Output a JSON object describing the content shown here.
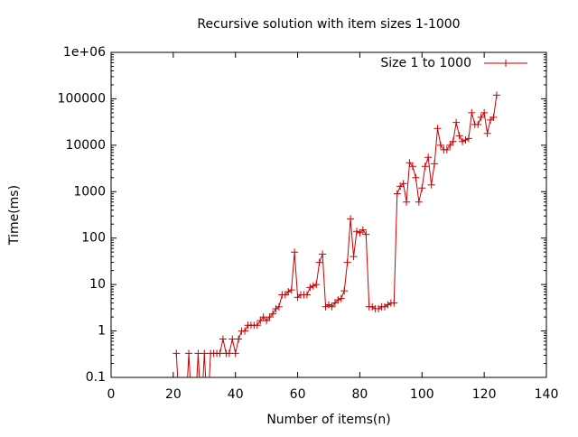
{
  "chart_data": {
    "type": "line",
    "title": "Recursive solution with item sizes 1-1000",
    "x_label": "Number of items(n)",
    "y_label": "Time(ms)",
    "log_y": true,
    "legend_position": "top-right",
    "xlim": [
      0,
      140
    ],
    "xticks": [
      0,
      20,
      40,
      60,
      80,
      100,
      120,
      140
    ],
    "ylim": [
      0.1,
      1000000
    ],
    "yticks": [
      0.1,
      1,
      10,
      100,
      1000,
      10000,
      100000,
      {
        "value": 1000000,
        "label": "1e+06"
      }
    ],
    "series": [
      {
        "name": "Size 1 to 1000",
        "color": "#cc0000",
        "x": [
          21,
          22,
          23,
          24,
          25,
          26,
          27,
          28,
          29,
          30,
          31,
          32,
          33,
          34,
          35,
          36,
          37,
          38,
          39,
          40,
          41,
          42,
          43,
          44,
          45,
          46,
          47,
          48,
          49,
          50,
          51,
          52,
          53,
          54,
          55,
          56,
          57,
          58,
          59,
          60,
          61,
          62,
          63,
          64,
          65,
          66,
          67,
          68,
          69,
          70,
          71,
          72,
          73,
          74,
          75,
          76,
          77,
          78,
          79,
          80,
          81,
          82,
          83,
          84,
          85,
          86,
          87,
          88,
          89,
          90,
          91,
          92,
          93,
          94,
          95,
          96,
          97,
          98,
          99,
          100,
          101,
          102,
          103,
          104,
          105,
          106,
          107,
          108,
          109,
          110,
          111,
          112,
          113,
          114,
          115,
          116,
          117,
          118,
          119,
          120,
          121,
          122,
          123,
          124
        ],
        "values": [
          0.33,
          0,
          0,
          0,
          0.33,
          0,
          0,
          0.33,
          0,
          0.33,
          0,
          0.33,
          0.33,
          0.33,
          0.33,
          0.67,
          0.33,
          0.33,
          0.67,
          0.33,
          0.67,
          1,
          1,
          1.33,
          1.33,
          1.33,
          1.33,
          1.67,
          2,
          1.67,
          2,
          2.33,
          3,
          3.33,
          6,
          6,
          7,
          7.67,
          50,
          5.33,
          6,
          6,
          6,
          8.67,
          9.33,
          10,
          30,
          45,
          3.33,
          3.67,
          3.33,
          4,
          4.67,
          5,
          7.33,
          30,
          260,
          40,
          140,
          130,
          150,
          120,
          3.33,
          3.33,
          3,
          3,
          3.33,
          3.33,
          3.67,
          4,
          4,
          900,
          1300,
          1500,
          600,
          4200,
          3500,
          2000,
          600,
          1200,
          3500,
          5500,
          1400,
          4000,
          23000,
          10000,
          8000,
          8000,
          10000,
          12000,
          31000,
          16000,
          12000,
          13000,
          14000,
          50000,
          28000,
          28000,
          40000,
          50000,
          18000,
          35000,
          40000,
          120000
        ]
      }
    ]
  }
}
